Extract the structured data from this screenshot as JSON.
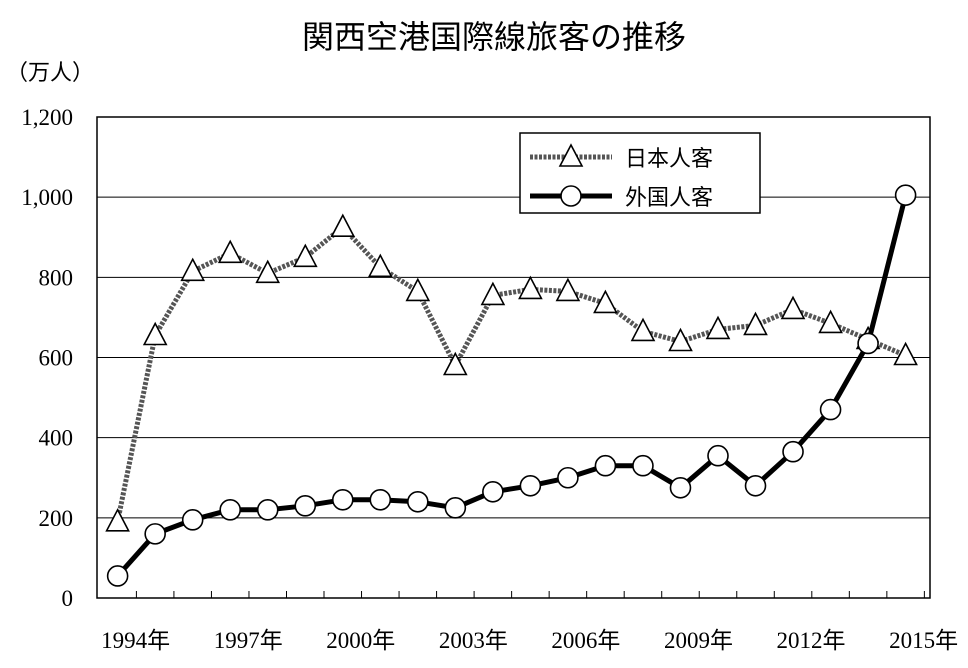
{
  "chart_data": {
    "type": "line",
    "title": "関西空港国際線旅客の推移",
    "ylabel": "（万人）",
    "xlabel": "",
    "ylim": [
      0,
      1200
    ],
    "y_ticks": [
      "0",
      "200",
      "400",
      "600",
      "800",
      "1,000",
      "1,200"
    ],
    "x": [
      1994,
      1995,
      1996,
      1997,
      1998,
      1999,
      2000,
      2001,
      2002,
      2003,
      2004,
      2005,
      2006,
      2007,
      2008,
      2009,
      2010,
      2011,
      2012,
      2013,
      2014,
      2015
    ],
    "x_tick_labels": [
      "1994年",
      "1997年",
      "2000年",
      "2003年",
      "2006年",
      "2009年",
      "2012年",
      "2015年"
    ],
    "grid": "horizontal",
    "legend_position": "top-right",
    "series": [
      {
        "name": "日本人客",
        "marker": "triangle",
        "color": "#555555",
        "values": [
          190,
          655,
          815,
          860,
          810,
          850,
          925,
          825,
          765,
          580,
          755,
          770,
          765,
          735,
          665,
          640,
          670,
          680,
          720,
          685,
          645,
          605
        ]
      },
      {
        "name": "外国人客",
        "marker": "circle",
        "color": "#000000",
        "values": [
          55,
          160,
          195,
          220,
          220,
          230,
          245,
          245,
          240,
          225,
          265,
          280,
          300,
          330,
          330,
          275,
          355,
          280,
          365,
          470,
          635,
          1005
        ]
      }
    ]
  }
}
